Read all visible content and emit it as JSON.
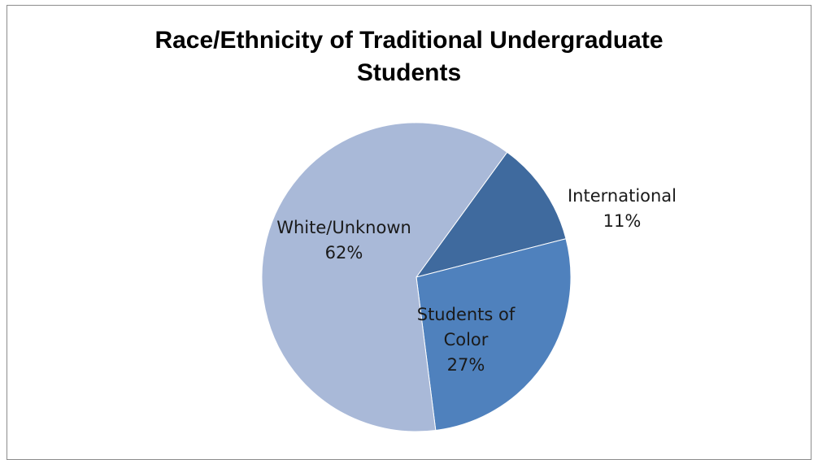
{
  "chart_data": {
    "type": "pie",
    "title": [
      "Race/Ethnicity of Traditional Undergraduate",
      "Students"
    ],
    "start_angle_deg": 36,
    "slices": [
      {
        "name": "International",
        "value": 11,
        "label_lines": [
          "International",
          "11%"
        ],
        "color": "#3f6a9e"
      },
      {
        "name": "Students of Color",
        "value": 27,
        "label_lines": [
          "Students of",
          "Color",
          "27%"
        ],
        "color": "#4f81bd"
      },
      {
        "name": "White/Unknown",
        "value": 62,
        "label_lines": [
          "White/Unknown",
          "62%"
        ],
        "color": "#a9b9d8"
      }
    ]
  }
}
